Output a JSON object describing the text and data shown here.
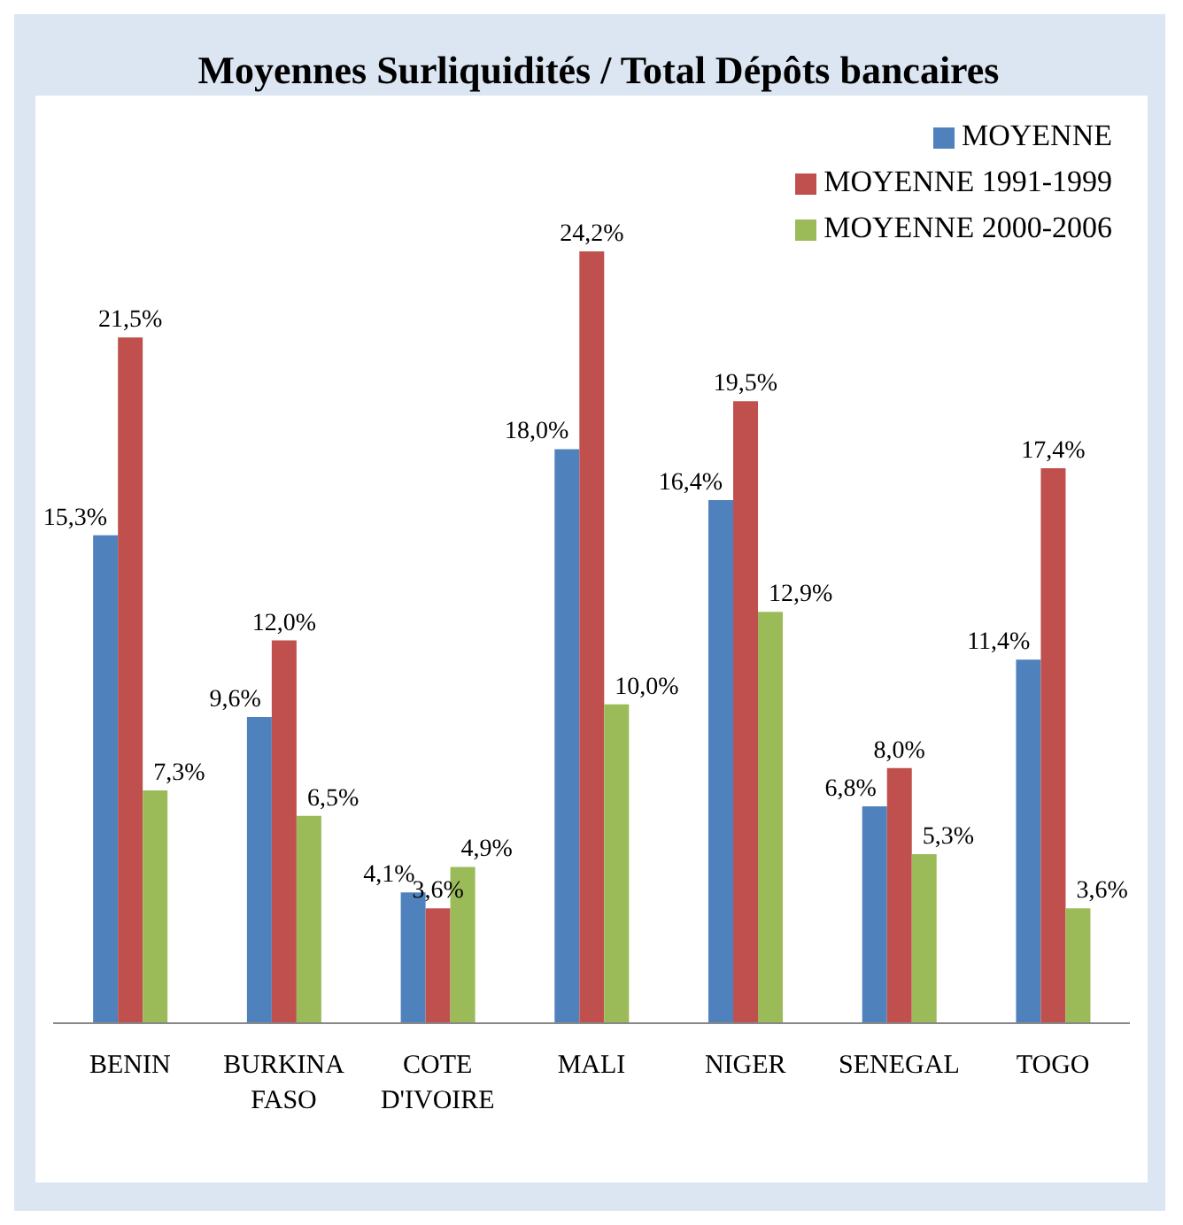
{
  "chart_data": {
    "type": "bar",
    "title": "Moyennes Surliquidités / Total Dépôts bancaires",
    "categories": [
      "BENIN",
      "BURKINA FASO",
      "COTE D'IVOIRE",
      "MALI",
      "NIGER",
      "SENEGAL",
      "TOGO"
    ],
    "series": [
      {
        "name": "MOYENNE",
        "color": "#4f81bd",
        "values": [
          15.3,
          9.6,
          4.1,
          18.0,
          16.4,
          6.8,
          11.4
        ],
        "value_labels": [
          "15,3%",
          "9,6%",
          "4,1%",
          "18,0%",
          "16,4%",
          "6,8%",
          "11,4%"
        ]
      },
      {
        "name": "MOYENNE 1991-1999",
        "color": "#c0504d",
        "values": [
          21.5,
          12.0,
          3.6,
          24.2,
          19.5,
          8.0,
          17.4
        ],
        "value_labels": [
          "21,5%",
          "12,0%",
          "3,6%",
          "24,2%",
          "19,5%",
          "8,0%",
          "17,4%"
        ]
      },
      {
        "name": "MOYENNE 2000-2006",
        "color": "#9bbb59",
        "values": [
          7.3,
          6.5,
          4.9,
          10.0,
          12.9,
          5.3,
          3.6
        ],
        "value_labels": [
          "7,3%",
          "6,5%",
          "4,9%",
          "10,0%",
          "12,9%",
          "5,3%",
          "3,6%"
        ]
      }
    ],
    "legend": "top right",
    "grid": false
  }
}
